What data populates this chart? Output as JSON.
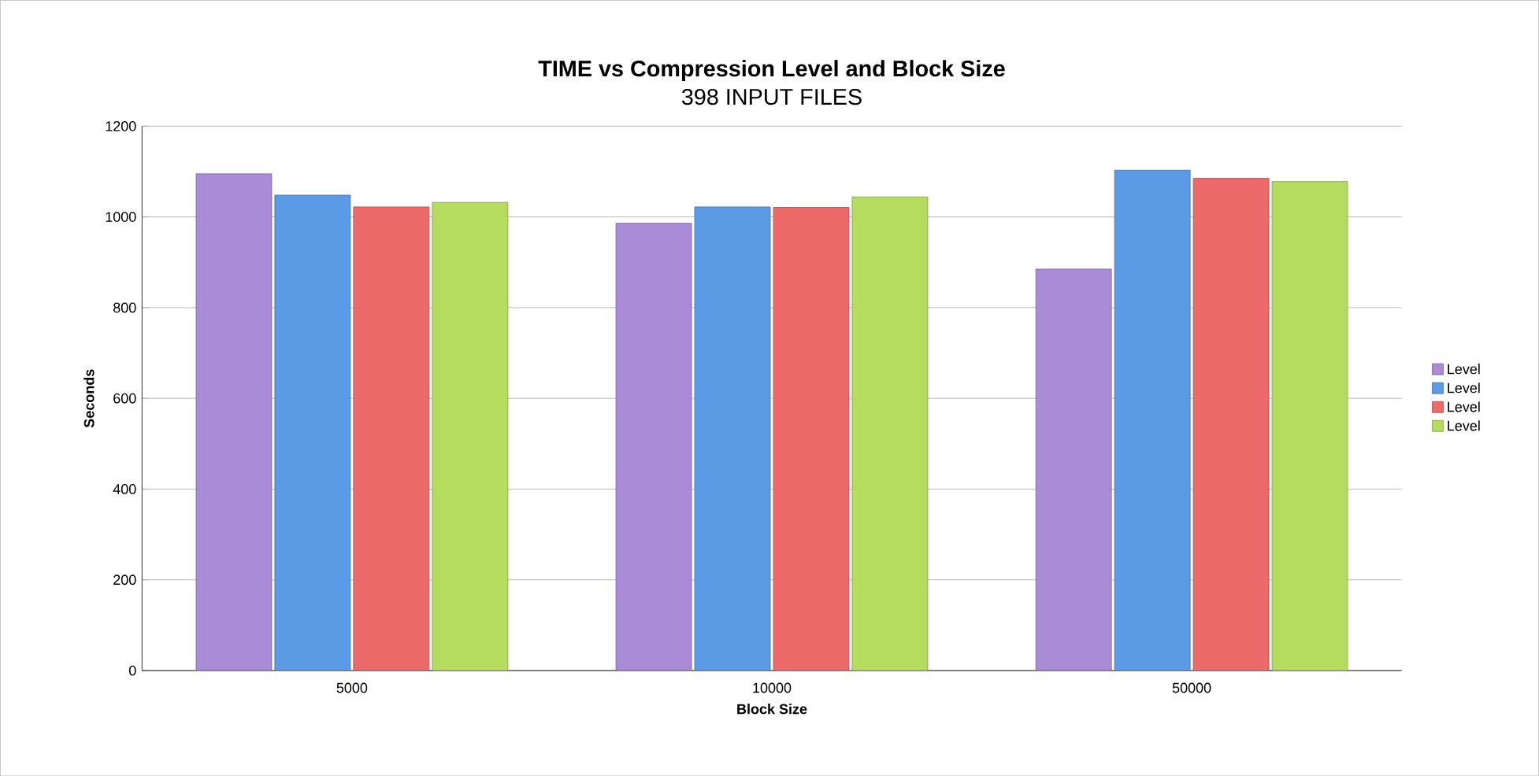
{
  "chart_data": {
    "type": "bar",
    "title": "TIME vs Compression Level and Block Size",
    "subtitle": "398 INPUT FILES",
    "xlabel": "Block Size",
    "ylabel": "Seconds",
    "categories": [
      "5000",
      "10000",
      "50000"
    ],
    "series": [
      {
        "name": "Level",
        "color": "#a98bd8",
        "values": [
          1095,
          986,
          885
        ]
      },
      {
        "name": "Level",
        "color": "#5b9be6",
        "values": [
          1048,
          1022,
          1103
        ]
      },
      {
        "name": "Level",
        "color": "#ec6a6a",
        "values": [
          1022,
          1021,
          1085
        ]
      },
      {
        "name": "Level",
        "color": "#b5dc5e",
        "values": [
          1032,
          1044,
          1078
        ]
      }
    ],
    "ylim": [
      0,
      1200
    ],
    "yticks": [
      0,
      200,
      400,
      600,
      800,
      1000,
      1200
    ],
    "grid": "y",
    "legend": "right"
  }
}
